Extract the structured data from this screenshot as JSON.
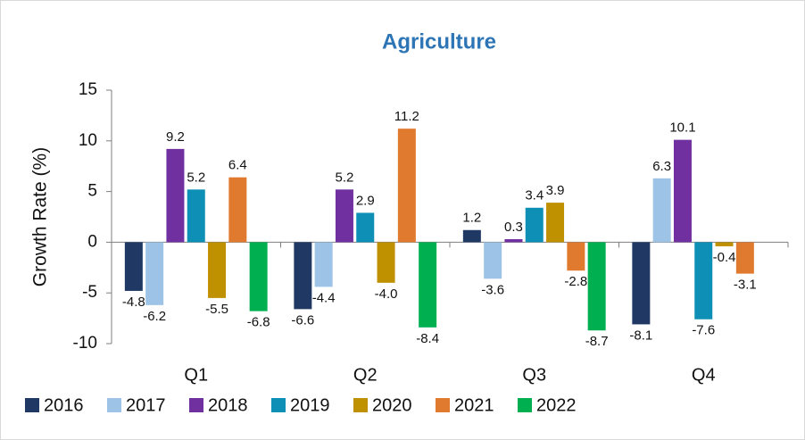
{
  "chart_data": {
    "type": "bar",
    "title": "Agriculture",
    "y_label": "Growth Rate (%)",
    "categories": [
      "Q1",
      "Q2",
      "Q3",
      "Q4"
    ],
    "series": [
      {
        "name": "2016",
        "color": "#1f3864",
        "values": [
          -4.8,
          -6.6,
          1.2,
          -8.1
        ],
        "value_labels": [
          "-4.8",
          "-6.6",
          "1.2",
          "-8.1"
        ]
      },
      {
        "name": "2017",
        "color": "#9dc3e6",
        "values": [
          -6.2,
          -4.4,
          -3.6,
          6.3
        ],
        "value_labels": [
          "-6.2",
          "-4.4",
          "-3.6",
          "6.3"
        ]
      },
      {
        "name": "2018",
        "color": "#7030a0",
        "values": [
          9.2,
          5.2,
          0.3,
          10.1
        ],
        "value_labels": [
          "9.2",
          "5.2",
          "0.3",
          "10.1"
        ]
      },
      {
        "name": "2019",
        "color": "#0e8fb5",
        "values": [
          5.2,
          2.9,
          3.4,
          -7.6
        ],
        "value_labels": [
          "5.2",
          "2.9",
          "3.4",
          "-7.6"
        ]
      },
      {
        "name": "2020",
        "color": "#bf9000",
        "values": [
          -5.5,
          -4.0,
          3.9,
          -0.4
        ],
        "value_labels": [
          "-5.5",
          "-4.0",
          "3.9",
          "-0.4"
        ]
      },
      {
        "name": "2021",
        "color": "#e07a2f",
        "values": [
          6.4,
          11.2,
          -2.8,
          -3.1
        ],
        "value_labels": [
          "6.4",
          "11.2",
          "-2.8",
          "-3.1"
        ]
      },
      {
        "name": "2022",
        "color": "#00b050",
        "values": [
          -6.8,
          -8.4,
          -8.7,
          null
        ],
        "value_labels": [
          "-6.8",
          "-8.4",
          "-8.7",
          null
        ]
      }
    ],
    "ylim": [
      -10,
      15
    ],
    "yticks": [
      -10,
      -5,
      0,
      5,
      10,
      15
    ],
    "grid": false,
    "legend": "bottom"
  }
}
